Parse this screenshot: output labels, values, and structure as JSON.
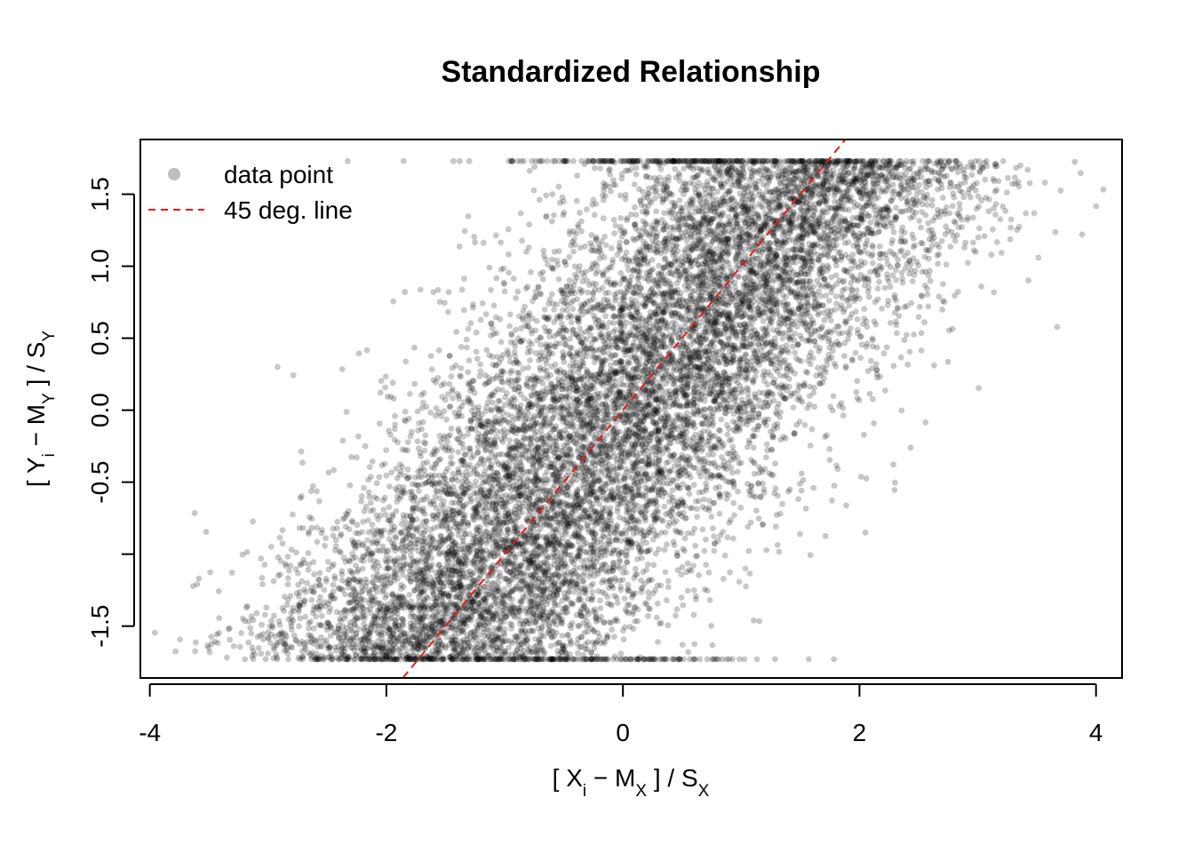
{
  "chart_data": {
    "type": "scatter",
    "title": "Standardized Relationship",
    "xlabel": {
      "text": "[ X_i − M̂_X ] / Ŝ_X",
      "parts": [
        "[ X",
        "i",
        " − ",
        "M",
        "X",
        " ] / ",
        "S",
        "X"
      ]
    },
    "ylabel": {
      "text": "[ Y_i − M̂_Y ] / Ŝ_Y",
      "parts": [
        "[ Y",
        "i",
        " − ",
        "M",
        "Y",
        " ] / ",
        "S",
        "Y"
      ]
    },
    "xlim": [
      -4.08,
      4.22
    ],
    "ylim": [
      -1.86,
      1.88
    ],
    "xticks": [
      -4,
      -2,
      0,
      2,
      4
    ],
    "xtick_labels": [
      "-4",
      "-2",
      "0",
      "2",
      "4"
    ],
    "yticks": [
      -1.5,
      -1.0,
      -0.5,
      0.0,
      0.5,
      1.0,
      1.5
    ],
    "ytick_labels": [
      "-1.5",
      "",
      "-0.5",
      "0.0",
      "0.5",
      "1.0",
      "1.5"
    ],
    "y_clip": [
      -1.73,
      1.73
    ],
    "estimated_relationship": {
      "slope": 1.0,
      "spread_sd": 0.82,
      "n_points": 12000
    },
    "series": [
      {
        "name": "data point",
        "kind": "points",
        "color": "#000000",
        "alpha": 0.22
      },
      {
        "name": "45 deg. line",
        "kind": "line",
        "color": "#e41a1c",
        "dash": "dashed",
        "slope": 1,
        "intercept": 0
      }
    ],
    "legend": {
      "position": "top-left",
      "entries": [
        "data point",
        "45 deg. line"
      ],
      "marker_color": "#bfbfbf"
    },
    "grid": false
  }
}
